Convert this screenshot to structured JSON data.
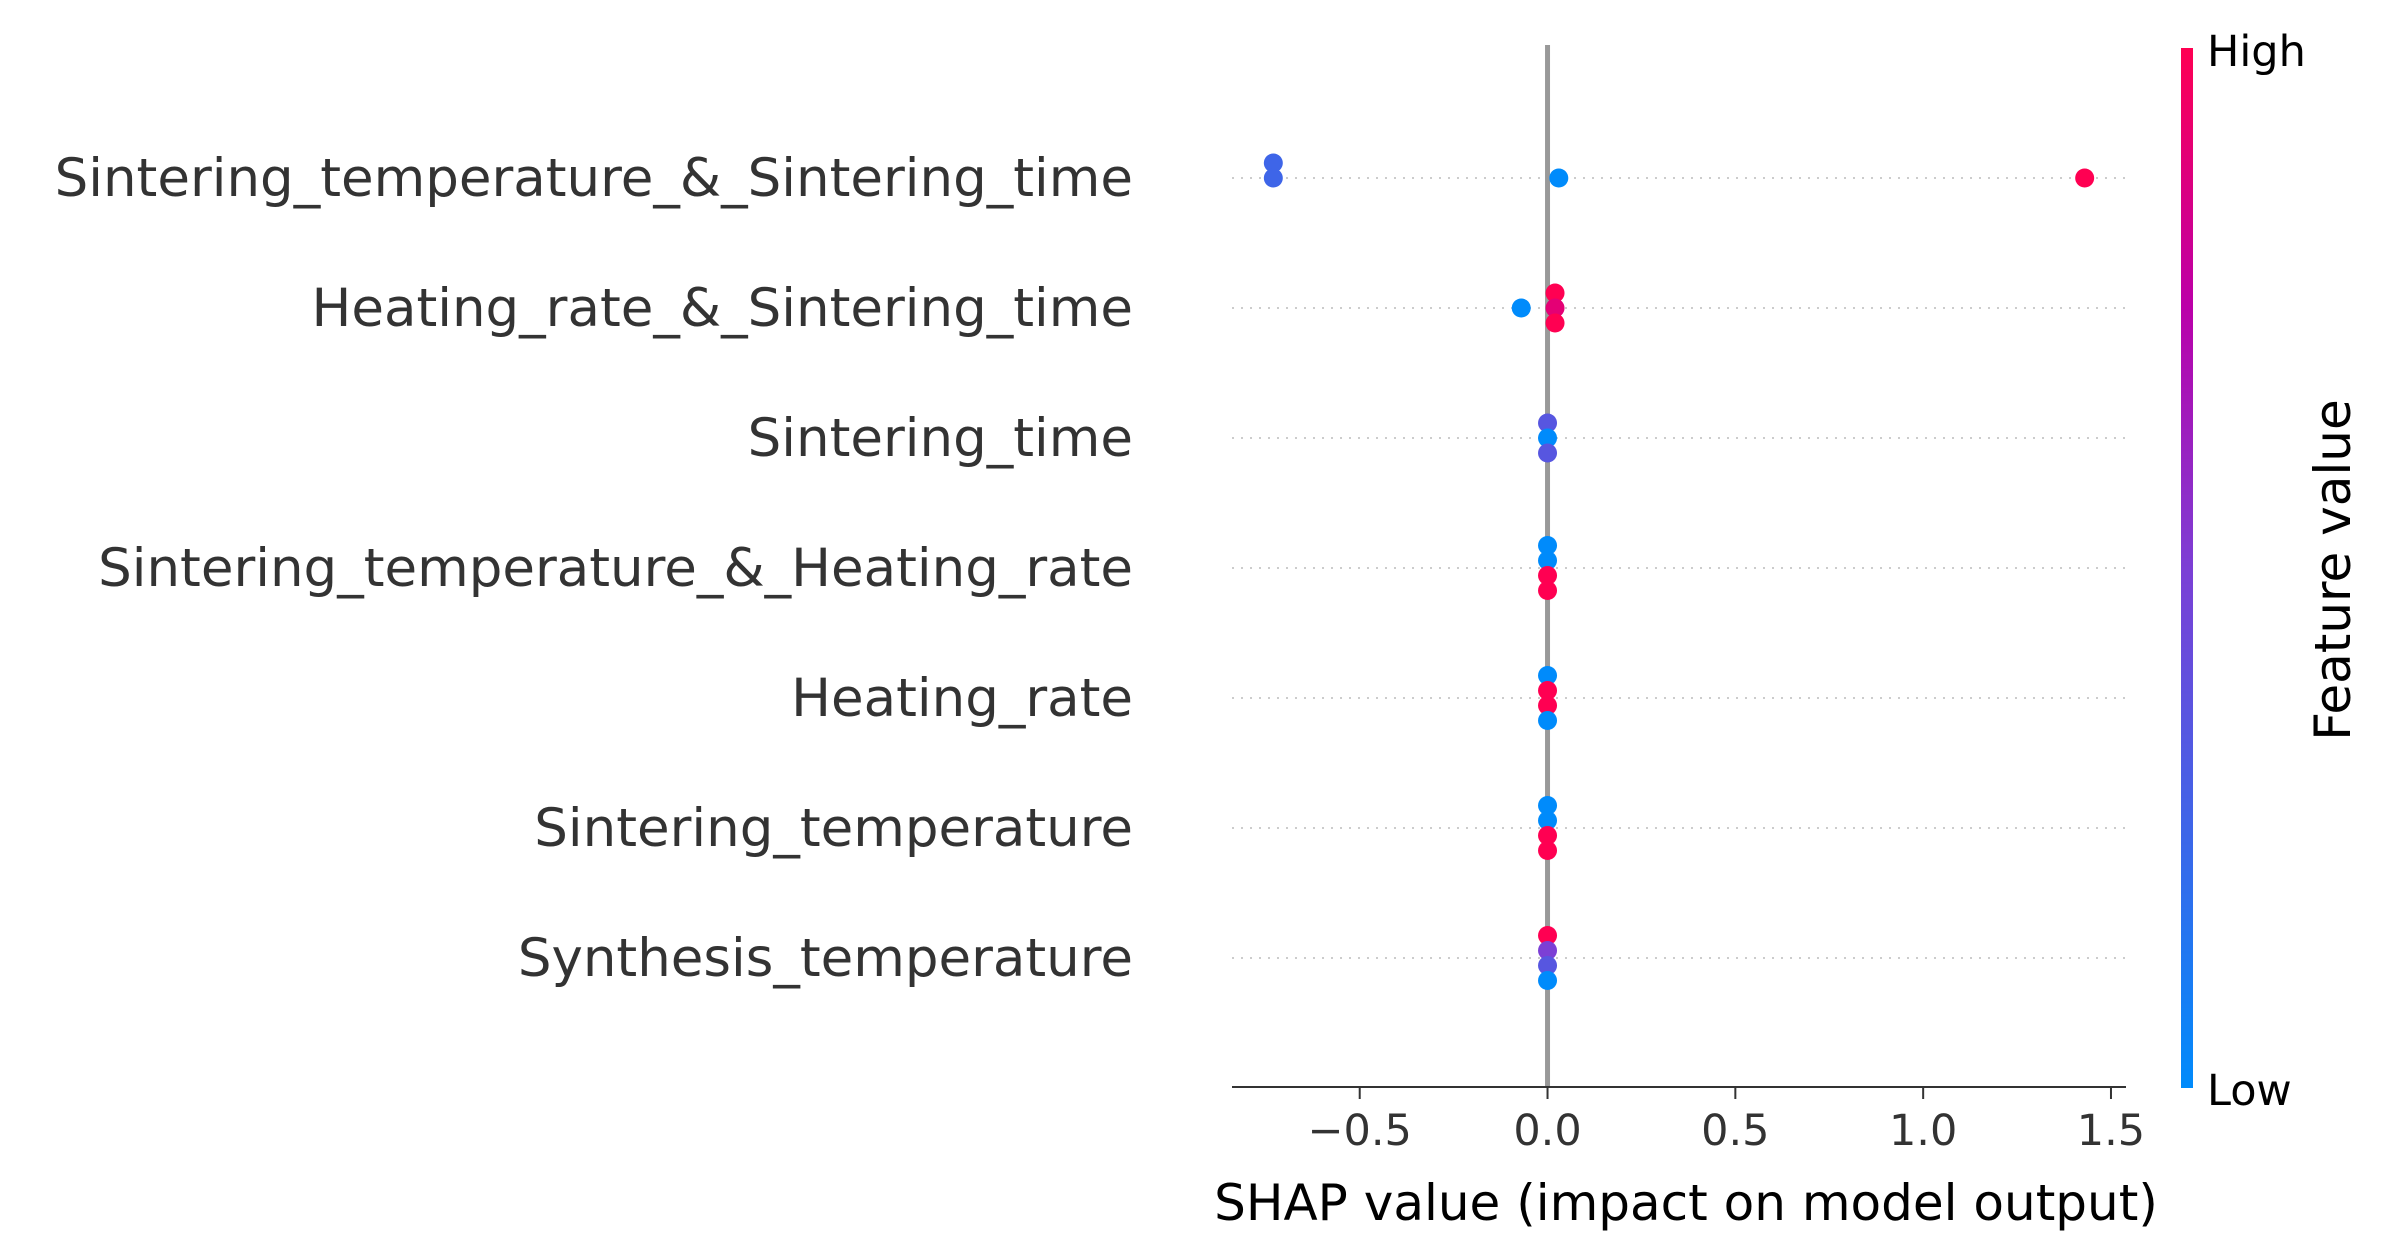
{
  "chart_data": {
    "type": "scatter",
    "xlabel": "SHAP value (impact on model output)",
    "x_ticks": [
      -0.5,
      0.0,
      0.5,
      1.0,
      1.5
    ],
    "x_tick_labels": [
      "−0.5",
      "0.0",
      "0.5",
      "1.0",
      "1.5"
    ],
    "xlim": [
      -0.84,
      1.54
    ],
    "features": [
      {
        "name": "Sintering_temperature_&_Sintering_time",
        "points": [
          {
            "shap": -0.73,
            "value": 0.25,
            "offset": -1
          },
          {
            "shap": -0.73,
            "value": 0.25,
            "offset": 0
          },
          {
            "shap": 0.03,
            "value": 0.0,
            "offset": 0
          },
          {
            "shap": 1.43,
            "value": 1.0,
            "offset": 0
          }
        ]
      },
      {
        "name": "Heating_rate_&_Sintering_time",
        "points": [
          {
            "shap": -0.07,
            "value": 0.0,
            "offset": 0
          },
          {
            "shap": 0.02,
            "value": 1.0,
            "offset": -1
          },
          {
            "shap": 0.02,
            "value": 0.9,
            "offset": 0
          },
          {
            "shap": 0.02,
            "value": 1.0,
            "offset": 1
          }
        ]
      },
      {
        "name": "Sintering_time",
        "points": [
          {
            "shap": 0.0,
            "value": 0.35,
            "offset": -1
          },
          {
            "shap": 0.0,
            "value": 0.0,
            "offset": 0
          },
          {
            "shap": 0.0,
            "value": 0.35,
            "offset": 1
          }
        ]
      },
      {
        "name": "Sintering_temperature_&_Heating_rate",
        "points": [
          {
            "shap": 0.0,
            "value": 0.0,
            "offset": -1.5
          },
          {
            "shap": 0.0,
            "value": 0.0,
            "offset": -0.5
          },
          {
            "shap": 0.0,
            "value": 1.0,
            "offset": 0.5
          },
          {
            "shap": 0.0,
            "value": 1.0,
            "offset": 1.5
          }
        ]
      },
      {
        "name": "Heating_rate",
        "points": [
          {
            "shap": 0.0,
            "value": 0.0,
            "offset": -1.5
          },
          {
            "shap": 0.0,
            "value": 1.0,
            "offset": -0.5
          },
          {
            "shap": 0.0,
            "value": 1.0,
            "offset": 0.5
          },
          {
            "shap": 0.0,
            "value": 0.0,
            "offset": 1.5
          }
        ]
      },
      {
        "name": "Sintering_temperature",
        "points": [
          {
            "shap": 0.0,
            "value": 0.0,
            "offset": -1.5
          },
          {
            "shap": 0.0,
            "value": 0.0,
            "offset": -0.5
          },
          {
            "shap": 0.0,
            "value": 1.0,
            "offset": 0.5
          },
          {
            "shap": 0.0,
            "value": 1.0,
            "offset": 1.5
          }
        ]
      },
      {
        "name": "Synthesis_temperature",
        "points": [
          {
            "shap": 0.0,
            "value": 1.0,
            "offset": -1.5
          },
          {
            "shap": 0.0,
            "value": 0.5,
            "offset": -0.5
          },
          {
            "shap": 0.0,
            "value": 0.35,
            "offset": 0.5
          },
          {
            "shap": 0.0,
            "value": 0.0,
            "offset": 1.5
          }
        ]
      }
    ],
    "colorbar": {
      "label": "Feature value",
      "high_label": "High",
      "low_label": "Low",
      "low_color": "#008bfb",
      "high_color": "#ff0052"
    },
    "zero_line": true,
    "grid": "dotted horizontal row lines"
  }
}
